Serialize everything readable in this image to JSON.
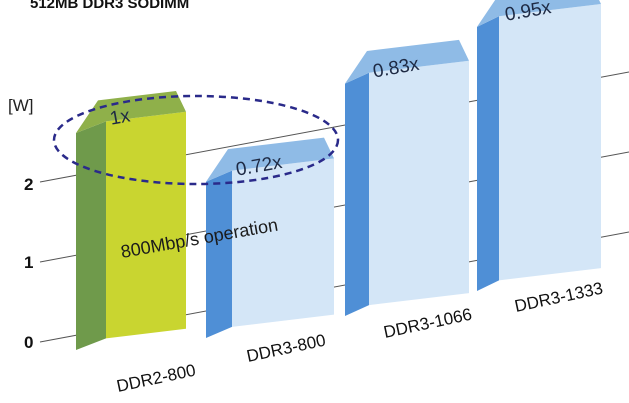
{
  "chart_data": {
    "type": "bar",
    "title": "512MB DDR3 SODIMM",
    "ylabel": "[W]",
    "yticks": [
      "0",
      "1",
      "2"
    ],
    "ylim": [
      0,
      3
    ],
    "categories": [
      "DDR2-800",
      "DDR3-800",
      "DDR3-1066",
      "DDR3-1333"
    ],
    "value_labels": [
      "1x",
      "0.72x",
      "0.83x",
      "0.95x"
    ],
    "values": [
      1,
      0.72,
      0.83,
      0.95
    ],
    "annotation": "800Mbp/s operation",
    "grid": true,
    "colors": {
      "ddr2_front": "#c9d530",
      "ddr2_side": "#6f9a4b",
      "ddr2_top": "#8fb04a",
      "ddr3_front": "#d4e6f7",
      "ddr3_side": "#4f8fd6",
      "ddr3_top": "#8fbbe6",
      "ellipse": "#2a2a8a",
      "grid": "#555555"
    }
  }
}
